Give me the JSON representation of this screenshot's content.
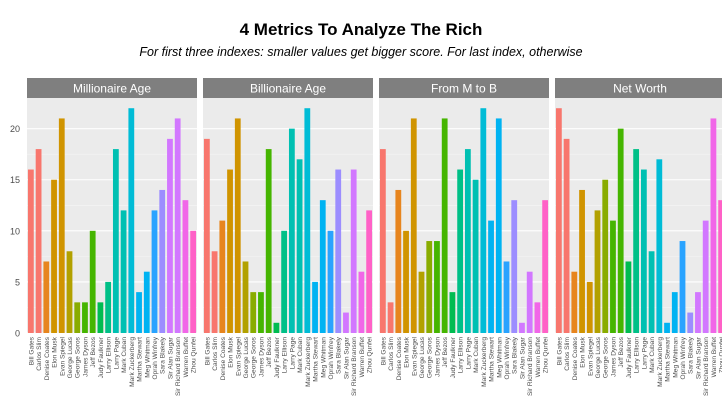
{
  "chart_data": {
    "type": "bar",
    "title": "4 Metrics To Analyze The Rich",
    "subtitle": "For first three indexes: smaller values get bigger score. For last index, otherwise",
    "ylim": [
      0,
      23
    ],
    "y_ticks": [
      0,
      5,
      10,
      15,
      20
    ],
    "grid": true,
    "legend": "none",
    "categories": [
      "Bill Gates",
      "Carlos Slim",
      "Denise Coates",
      "Elon Musk",
      "Evan Spiegel",
      "George Lucas",
      "George Soros",
      "James Dyson",
      "Jeff Bezos",
      "Judy Faulkner",
      "Larry Ellison",
      "Larry Page",
      "Mark Cuban",
      "Mark Zuckerberg",
      "Martha Stewart",
      "Meg Whitman",
      "Oprah Winfrey",
      "Sara Blakely",
      "Sir Alan Sugar",
      "Sir Richard Branson",
      "Warren Buffet",
      "Zhou Qunfei"
    ],
    "colors": [
      "#F8766D",
      "#E7851E",
      "#D09400",
      "#B2A100",
      "#89AC00",
      "#45B500",
      "#00BC51",
      "#00C087",
      "#00C0B2",
      "#00BCD6",
      "#00B3F2",
      "#29A3FF",
      "#9C8DFF",
      "#D277FF",
      "#F166E8",
      "#FF61C7"
    ],
    "panels": [
      {
        "name": "Millionaire Age",
        "values": [
          16,
          18,
          7,
          15,
          21,
          8,
          3,
          3,
          10,
          3,
          5,
          18,
          12,
          22,
          4,
          6,
          12,
          14,
          19,
          21,
          13,
          10
        ]
      },
      {
        "name": "Billionaire Age",
        "values": [
          19,
          8,
          11,
          16,
          21,
          7,
          4,
          4,
          18,
          1,
          10,
          20,
          17,
          22,
          5,
          13,
          10,
          16,
          2,
          16,
          6,
          12
        ]
      },
      {
        "name": "From M to B",
        "values": [
          18,
          3,
          14,
          10,
          21,
          6,
          9,
          9,
          21,
          4,
          16,
          18,
          15,
          22,
          11,
          21,
          7,
          13,
          1,
          6,
          3,
          13
        ]
      },
      {
        "name": "Net Worth",
        "values": [
          22,
          19,
          6,
          14,
          5,
          12,
          15,
          11,
          20,
          7,
          18,
          16,
          8,
          17,
          1,
          4,
          9,
          2,
          4,
          11,
          21,
          13
        ]
      }
    ]
  }
}
